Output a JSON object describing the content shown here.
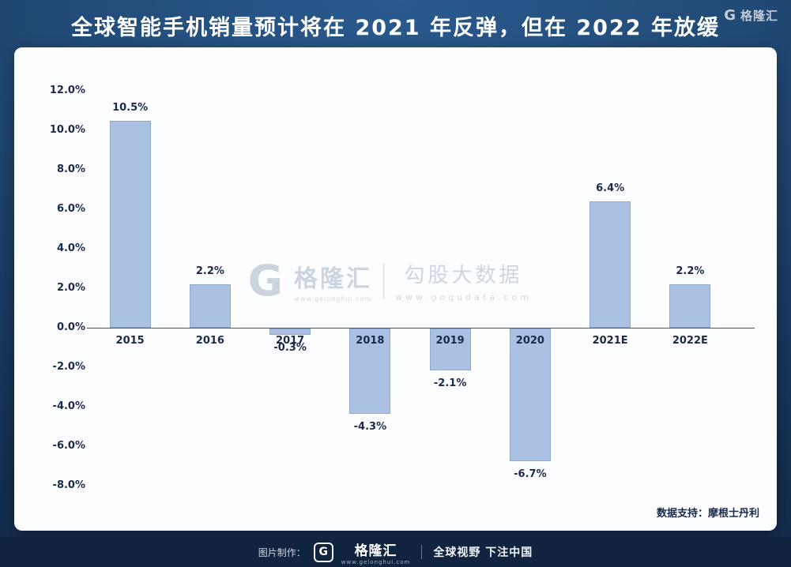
{
  "page_title": "全球智能手机销量预计将在 2021 年反弹，但在 2022 年放缓",
  "chart_data": {
    "type": "bar",
    "title": "全球智能手机销量预计将在 2021 年反弹，但在 2022 年放缓",
    "categories": [
      "2015",
      "2016",
      "2017",
      "2018",
      "2019",
      "2020",
      "2021E",
      "2022E"
    ],
    "values": [
      10.5,
      2.2,
      -0.3,
      -4.3,
      -2.1,
      -6.7,
      6.4,
      2.2
    ],
    "value_labels": [
      "10.5%",
      "2.2%",
      "-0.3%",
      "-4.3%",
      "-2.1%",
      "-6.7%",
      "6.4%",
      "2.2%"
    ],
    "xlabel": "",
    "ylabel": "",
    "ylim": [
      -8,
      12
    ],
    "ytick_step": 2,
    "ytick_labels": [
      "12.0%",
      "10.0%",
      "8.0%",
      "6.0%",
      "4.0%",
      "2.0%",
      "0.0%",
      "-2.0%",
      "-4.0%",
      "-6.0%",
      "-8.0%"
    ],
    "grid": false,
    "legend": "none",
    "bar_color": "#aac1e4",
    "bar_border_color": "#8fa9d0",
    "label_color": "#1b2a4a"
  },
  "watermark": {
    "logo_letter": "G",
    "brand": "格隆汇",
    "brand_url": "www.gelonghui.com",
    "product": "勾股大数据",
    "product_url": "www.gogudata.com"
  },
  "source_note": "数据支持：摩根士丹利",
  "footer": {
    "made_by_label": "图片制作：",
    "logo_letter": "G",
    "brand": "格隆汇",
    "brand_url": "www.gelonghui.com",
    "slogan": "全球视野 下注中国",
    "right_logo_letter": "G",
    "right_brand": "格隆汇"
  },
  "colors": {
    "background_top": "#2a5a8e",
    "background_bottom": "#132c4e",
    "card": "#fcfdfe",
    "bar_fill": "#aac1e4",
    "bar_border": "#8fa9d0",
    "text_dark": "#1b2a4a",
    "title_text": "#ffffff",
    "footer_bg": "#10243f"
  }
}
